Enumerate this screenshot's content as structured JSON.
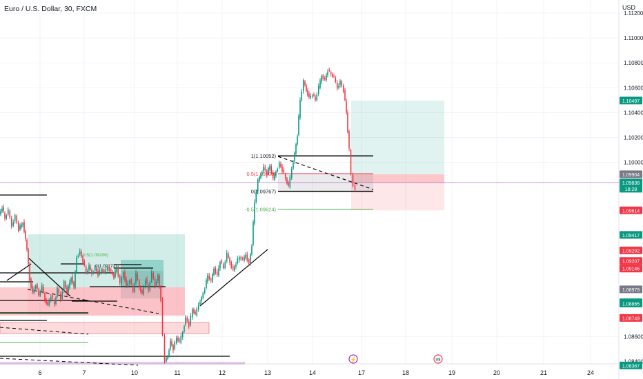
{
  "title": "Euro / U.S. Dollar, 30, FXCM",
  "currency": "USD",
  "colors": {
    "up": "#089981",
    "down": "#f23645",
    "grid": "#f0f3fa",
    "axis_text": "#131722",
    "price_line": "#9c27b0"
  },
  "chart_data": {
    "type": "candlestick",
    "symbol": "Euro / U.S. Dollar",
    "timeframe": "30",
    "source": "FXCM",
    "x_ticks": [
      "6",
      "7",
      "10",
      "11",
      "12",
      "13",
      "14",
      "17",
      "18",
      "19",
      "20",
      "21",
      "24"
    ],
    "y_ticks": [
      "1.11200",
      "1.11000",
      "1.10800",
      "1.10600",
      "1.10400",
      "1.10200",
      "1.10000",
      "1.08600"
    ],
    "partial_y_tick": "1.08400",
    "ylim": [
      1.0834,
      1.1136
    ],
    "price_path": [
      [
        0,
        1.0958
      ],
      [
        4,
        1.0964
      ],
      [
        8,
        1.0955
      ],
      [
        13,
        1.0961
      ],
      [
        18,
        1.0949
      ],
      [
        23,
        1.0957
      ],
      [
        28,
        1.0946
      ],
      [
        34,
        1.0952
      ],
      [
        40,
        1.093
      ],
      [
        44,
        1.0906
      ],
      [
        48,
        1.0895
      ],
      [
        53,
        1.0902
      ],
      [
        57,
        1.0893
      ],
      [
        62,
        1.09
      ],
      [
        66,
        1.089
      ],
      [
        70,
        1.0885
      ],
      [
        75,
        1.0893
      ],
      [
        80,
        1.0886
      ],
      [
        84,
        1.0898
      ],
      [
        89,
        1.089
      ],
      [
        94,
        1.0904
      ],
      [
        98,
        1.0895
      ],
      [
        104,
        1.0908
      ],
      [
        108,
        1.0899
      ],
      [
        112,
        1.0924
      ],
      [
        117,
        1.0928
      ],
      [
        121,
        1.0921
      ],
      [
        126,
        1.0911
      ],
      [
        130,
        1.0916
      ],
      [
        134,
        1.0911
      ],
      [
        139,
        1.0915
      ],
      [
        143,
        1.091
      ],
      [
        148,
        1.0914
      ],
      [
        152,
        1.0911
      ],
      [
        157,
        1.0916
      ],
      [
        162,
        1.0912
      ],
      [
        166,
        1.0908
      ],
      [
        170,
        1.0916
      ],
      [
        175,
        1.0902
      ],
      [
        180,
        1.0912
      ],
      [
        184,
        1.09
      ],
      [
        189,
        1.0906
      ],
      [
        194,
        1.0896
      ],
      [
        198,
        1.091
      ],
      [
        203,
        1.09
      ],
      [
        207,
        1.0894
      ],
      [
        212,
        1.0906
      ],
      [
        216,
        1.0897
      ],
      [
        221,
        1.0911
      ],
      [
        226,
        1.0901
      ],
      [
        230,
        1.0909
      ],
      [
        234,
        1.089
      ],
      [
        237,
        1.086
      ],
      [
        240,
        1.084
      ],
      [
        244,
        1.0844
      ],
      [
        248,
        1.0856
      ],
      [
        252,
        1.085
      ],
      [
        257,
        1.0859
      ],
      [
        261,
        1.0855
      ],
      [
        266,
        1.0864
      ],
      [
        270,
        1.0875
      ],
      [
        275,
        1.0869
      ],
      [
        280,
        1.0882
      ],
      [
        284,
        1.0877
      ],
      [
        289,
        1.0886
      ],
      [
        293,
        1.0891
      ],
      [
        298,
        1.0899
      ],
      [
        302,
        1.0909
      ],
      [
        307,
        1.0904
      ],
      [
        311,
        1.0915
      ],
      [
        316,
        1.0909
      ],
      [
        320,
        1.0921
      ],
      [
        325,
        1.0915
      ],
      [
        330,
        1.0926
      ],
      [
        334,
        1.092
      ],
      [
        339,
        1.0913
      ],
      [
        343,
        1.0919
      ],
      [
        348,
        1.0924
      ],
      [
        353,
        1.0921
      ],
      [
        357,
        1.0926
      ],
      [
        362,
        1.0918
      ],
      [
        366,
        1.0934
      ],
      [
        370,
        1.0968
      ],
      [
        375,
        1.0985
      ],
      [
        379,
        1.099
      ],
      [
        383,
        1.0996
      ],
      [
        388,
        1.0991
      ],
      [
        392,
        1.0997
      ],
      [
        397,
        1.0986
      ],
      [
        401,
        1.0993
      ],
      [
        406,
        1.0999
      ],
      [
        410,
        1.0994
      ],
      [
        415,
        1.0987
      ],
      [
        419,
        1.098
      ],
      [
        424,
        1.0995
      ],
      [
        428,
        1.1007
      ],
      [
        432,
        1.1022
      ],
      [
        436,
        1.105
      ],
      [
        441,
        1.1065
      ],
      [
        445,
        1.1058
      ],
      [
        449,
        1.1052
      ],
      [
        454,
        1.1055
      ],
      [
        458,
        1.105
      ],
      [
        463,
        1.106
      ],
      [
        467,
        1.107
      ],
      [
        472,
        1.1066
      ],
      [
        476,
        1.1074
      ],
      [
        481,
        1.1071
      ],
      [
        485,
        1.1068
      ],
      [
        490,
        1.106
      ],
      [
        494,
        1.1065
      ],
      [
        499,
        1.1058
      ],
      [
        503,
        1.104
      ],
      [
        507,
        1.101
      ],
      [
        510,
        1.099
      ],
      [
        513,
        1.0982
      ],
      [
        516,
        1.0978
      ]
    ],
    "tools": [
      {
        "type": "fib",
        "label": "1(1.10052)",
        "price": 1.10052
      },
      {
        "type": "fib",
        "label": "0.5(1.09909)",
        "price": 1.09909
      },
      {
        "type": "fib",
        "label": "0(1.09767)",
        "price": 1.09767
      },
      {
        "type": "fib",
        "label": "-0.5(1.09624)",
        "price": 1.09624
      },
      {
        "type": "position",
        "kind": "long",
        "entry": 1.09904,
        "target": 1.10497,
        "stop": 1.09614
      }
    ],
    "price_labels": [
      {
        "price": 1.10497,
        "label": "1.10497",
        "bg": "#089981"
      },
      {
        "price": 1.09904,
        "label": "1.09904",
        "bg": "#787b86"
      },
      {
        "price": 1.09838,
        "label": "1.09838",
        "sub": "18:28",
        "bg": "#089981"
      },
      {
        "price": 1.09614,
        "label": "1.09614",
        "bg": "#f23645"
      },
      {
        "price": 1.09417,
        "label": "1.09417",
        "bg": "#089981"
      },
      {
        "price": 1.09292,
        "label": "1.09292",
        "bg": "#f23645"
      },
      {
        "price": 1.09207,
        "label": "1.09207",
        "bg": "#f23645"
      },
      {
        "price": 1.09146,
        "label": "1.09146",
        "bg": "#f23645"
      },
      {
        "price": 1.08979,
        "label": "1.08979",
        "bg": "#787b86"
      },
      {
        "price": 1.08875,
        "label": "1.08875",
        "bg": "#089981"
      },
      {
        "price": 1.08865,
        "label": "1.08865",
        "bg": "#089981"
      },
      {
        "price": 1.08749,
        "label": "1.08749",
        "bg": "#f23645"
      },
      {
        "price": 1.08367,
        "label": "1.08367",
        "bg": "#089981"
      }
    ],
    "small_labels": [
      "0.5(1.09206)",
      "0(1.09172)"
    ],
    "event_icons": [
      {
        "name": "lightning-icon",
        "glyph": "⚡"
      },
      {
        "name": "us-flag-icon",
        "glyph": "US"
      }
    ]
  }
}
